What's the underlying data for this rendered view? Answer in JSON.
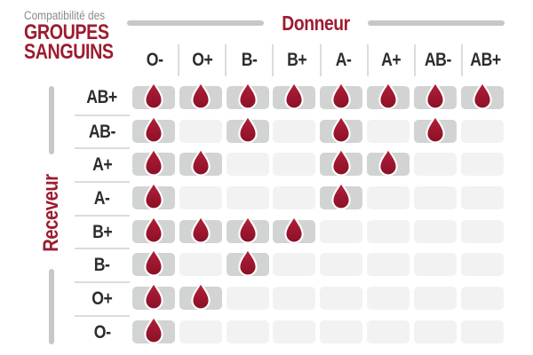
{
  "title": {
    "small": "Compatibilité des",
    "line1": "GROUPES",
    "line2": "SANGUINS"
  },
  "axes": {
    "donor": "Donneur",
    "recipient": "Receveur"
  },
  "chart_data": {
    "type": "heatmap",
    "title": "Compatibilité des GROUPES SANGUINS",
    "x_axis_label": "Donneur",
    "y_axis_label": "Receveur",
    "columns": [
      "O-",
      "O+",
      "B-",
      "B+",
      "A-",
      "A+",
      "AB-",
      "AB+"
    ],
    "rows": [
      "AB+",
      "AB-",
      "A+",
      "A-",
      "B+",
      "B-",
      "O+",
      "O-"
    ],
    "matrix": [
      [
        1,
        1,
        1,
        1,
        1,
        1,
        1,
        1
      ],
      [
        1,
        0,
        1,
        0,
        1,
        0,
        1,
        0
      ],
      [
        1,
        1,
        0,
        0,
        1,
        1,
        0,
        0
      ],
      [
        1,
        0,
        0,
        0,
        1,
        0,
        0,
        0
      ],
      [
        1,
        1,
        1,
        1,
        0,
        0,
        0,
        0
      ],
      [
        1,
        0,
        1,
        0,
        0,
        0,
        0,
        0
      ],
      [
        1,
        1,
        0,
        0,
        0,
        0,
        0,
        0
      ],
      [
        1,
        0,
        0,
        0,
        0,
        0,
        0,
        0
      ]
    ],
    "cell_icon": "blood-drop-icon"
  },
  "colors": {
    "red": "#9d1c30",
    "gray_text": "#8a8a8a",
    "dark": "#2d2d2d",
    "line": "#c6c7c7",
    "sep": "#dcdcdd",
    "cell_filled": "#d2d3d3",
    "cell_empty": "#f2f2f2",
    "drop_top": "#b22338",
    "drop_bottom": "#8a1126",
    "drop_outline": "#ffffff"
  }
}
